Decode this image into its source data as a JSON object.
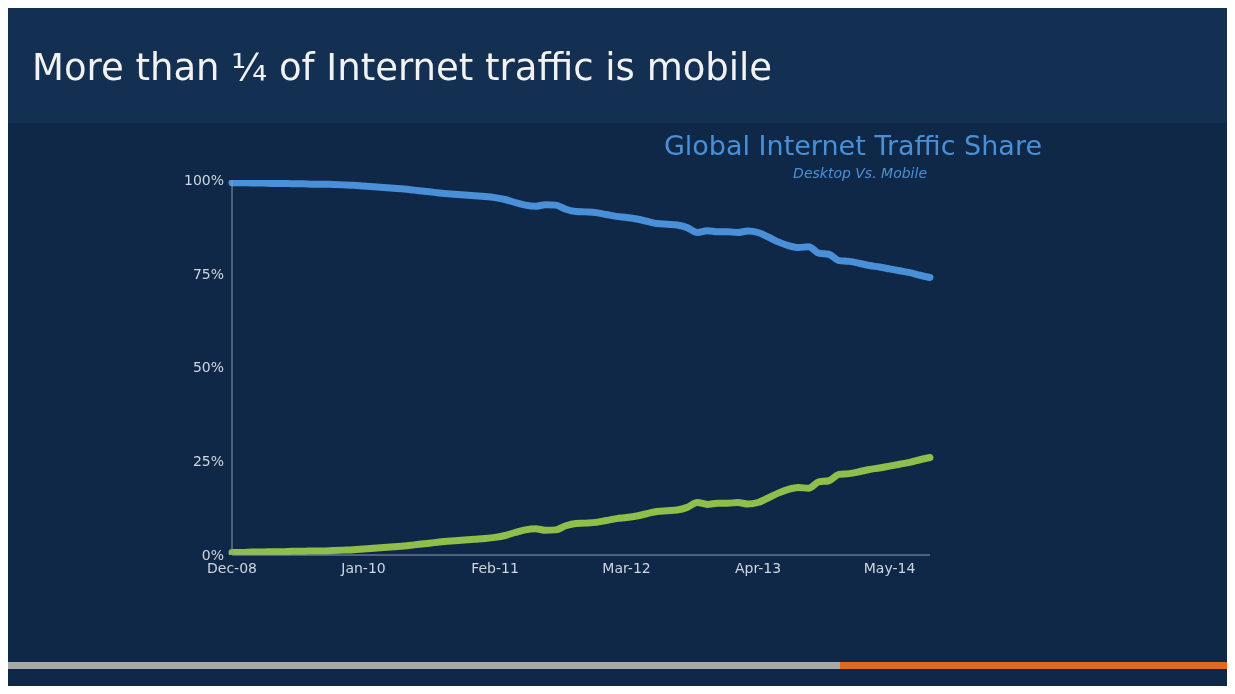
{
  "chart_data": {
    "type": "line",
    "title": "More than ¼ of Internet traffic is mobile",
    "subtitle": "Global Internet Traffic Share",
    "annotations": [
      "Desktop Vs. Mobile"
    ],
    "categories": [
      "Dec-08",
      null,
      null,
      null,
      null,
      null,
      null,
      null,
      null,
      null,
      null,
      null,
      null,
      "Jan-10",
      null,
      null,
      null,
      null,
      null,
      null,
      null,
      null,
      null,
      null,
      null,
      null,
      "Feb-11",
      null,
      null,
      null,
      null,
      null,
      null,
      null,
      null,
      null,
      null,
      null,
      null,
      "Mar-12",
      null,
      null,
      null,
      null,
      null,
      null,
      null,
      null,
      null,
      null,
      null,
      null,
      "Apr-13",
      null,
      null,
      null,
      null,
      null,
      null,
      null,
      null,
      null,
      null,
      null,
      null,
      "May-14",
      null,
      null,
      null,
      null
    ],
    "series": [
      {
        "color": "#4a90d9",
        "values": [
          99.3,
          99.3,
          99.2,
          99.2,
          99.1,
          99.1,
          99.0,
          99.0,
          98.9,
          98.9,
          98.8,
          98.7,
          98.6,
          98.4,
          98.2,
          98.0,
          97.8,
          97.6,
          97.3,
          97.0,
          96.7,
          96.4,
          96.2,
          96.0,
          95.8,
          95.6,
          95.3,
          94.8,
          94.0,
          93.3,
          93.0,
          93.4,
          93.3,
          92.2,
          91.6,
          91.5,
          91.3,
          90.8,
          90.3,
          90.0,
          89.6,
          89.0,
          88.4,
          88.2,
          88.0,
          87.3,
          86.0,
          86.5,
          86.2,
          86.2,
          86.0,
          86.4,
          86.0,
          84.8,
          83.5,
          82.5,
          82.0,
          82.2,
          80.5,
          80.2,
          78.5,
          78.3,
          77.8,
          77.2,
          76.8,
          76.3,
          75.8,
          75.3,
          74.6,
          74.0
        ]
      },
      {
        "color": "#8fbf4a",
        "values": [
          0.7,
          0.7,
          0.8,
          0.8,
          0.9,
          0.9,
          1.0,
          1.0,
          1.1,
          1.1,
          1.2,
          1.3,
          1.4,
          1.6,
          1.8,
          2.0,
          2.2,
          2.4,
          2.7,
          3.0,
          3.3,
          3.6,
          3.8,
          4.0,
          4.2,
          4.4,
          4.7,
          5.2,
          6.0,
          6.7,
          7.0,
          6.6,
          6.7,
          7.8,
          8.4,
          8.5,
          8.7,
          9.2,
          9.7,
          10.0,
          10.4,
          11.0,
          11.6,
          11.8,
          12.0,
          12.7,
          14.0,
          13.5,
          13.8,
          13.8,
          14.0,
          13.6,
          14.0,
          15.2,
          16.5,
          17.5,
          18.0,
          17.8,
          19.5,
          19.8,
          21.5,
          21.7,
          22.2,
          22.8,
          23.2,
          23.7,
          24.2,
          24.7,
          25.4,
          26.0
        ]
      }
    ],
    "ylim": [
      0,
      100
    ],
    "yticks": [
      {
        "value": 0,
        "label": "0%"
      },
      {
        "value": 25,
        "label": "25%"
      },
      {
        "value": 50,
        "label": "50%"
      },
      {
        "value": 75,
        "label": "75%"
      },
      {
        "value": 100,
        "label": "100%"
      }
    ],
    "grid": false,
    "legend": false,
    "marker": "none",
    "line_style": "solid"
  }
}
